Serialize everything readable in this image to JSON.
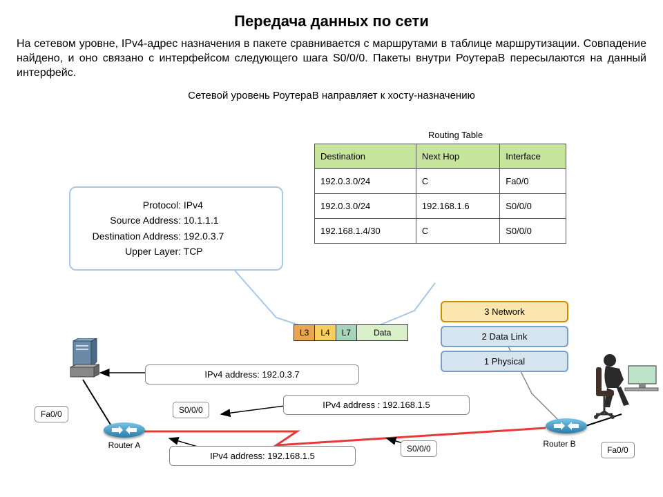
{
  "title": "Передача данных по сети",
  "description": "На сетевом уровне, IPv4-адрес назначения в пакете сравнивается с маршрутами в таблице маршрутизации. Совпадение найдено, и оно связано с интерфейсом следующего шага S0/0/0. Пакеты внутри РоутераB пересылаются на данный интерфейс.",
  "subtitle": "Сетевой уровень РоутераB направляет к хосту-назначению",
  "routing_table": {
    "label": "Routing Table",
    "headers": [
      "Destination",
      "Next Hop",
      "Interface"
    ],
    "rows": [
      [
        "192.0.3.0/24",
        "C",
        "Fa0/0"
      ],
      [
        "192.0.3.0/24",
        "192.168.1.6",
        "S0/0/0"
      ],
      [
        "192.168.1.4/30",
        "C",
        "S0/0/0"
      ]
    ],
    "header_bg": "#c6e49c",
    "border_color": "#555555"
  },
  "packet": {
    "protocol_label": "Protocol:",
    "protocol": "IPv4",
    "src_label": "Source Address:",
    "src": "10.1.1.1",
    "dst_label": "Destination Address:",
    "dst": "192.0.3.7",
    "upper_label": "Upper Layer:",
    "upper": "TCP",
    "border_color": "#a8c8e8"
  },
  "encap": {
    "segments": [
      "L3",
      "L4",
      "L7",
      "Data"
    ],
    "colors": [
      "#e8a552",
      "#f5d060",
      "#a6d4b8",
      "#d8efc8"
    ]
  },
  "layers": [
    {
      "text": "3 Network",
      "bg": "#fce6b0",
      "border": "#d68a00"
    },
    {
      "text": "2 Data Link",
      "bg": "#d6e4f0",
      "border": "#7a9ec8"
    },
    {
      "text": "1 Physical",
      "bg": "#d6e4f0",
      "border": "#7a9ec8"
    }
  ],
  "addresses": {
    "a1": "IPv4 address: 192.0.3.7",
    "a2": "IPv4 address : 192.168.1.5",
    "a3": "IPv4 address: 192.168.1.5"
  },
  "interfaces": {
    "fa00_left": "Fa0/0",
    "s000_left": "S0/0/0",
    "s000_right": "S0/0/0",
    "fa00_right": "Fa0/0"
  },
  "routers": {
    "a_label": "Router A",
    "b_label": "Router B",
    "body_gradient_top": "#79c5e8",
    "body_gradient_bottom": "#2a7ca8"
  },
  "colors": {
    "line_color": "#000000",
    "serial_red": "#e83838",
    "arrow_fill": "#000000"
  }
}
